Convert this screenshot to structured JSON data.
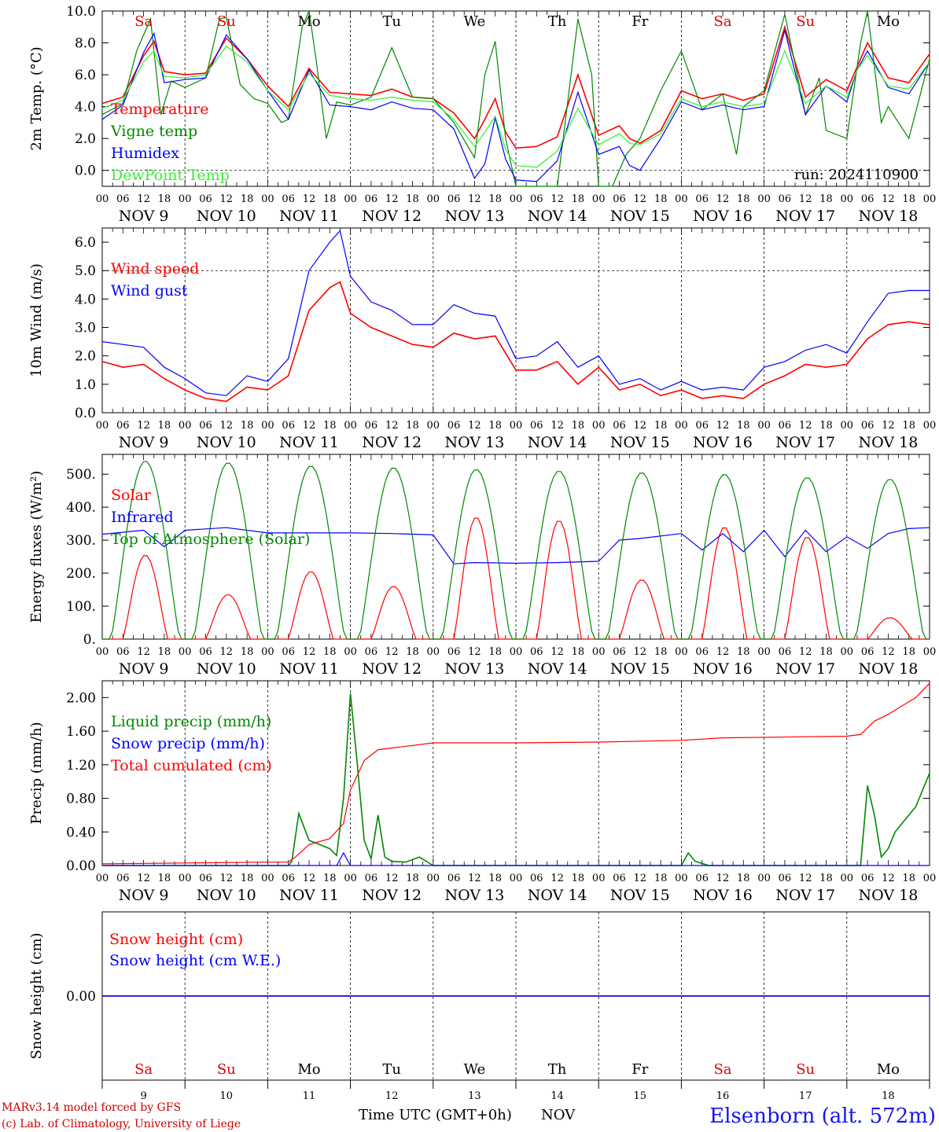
{
  "header": {
    "run_label": "run: 2024110900",
    "hour_ticks": [
      "00",
      "06",
      "12",
      "18"
    ],
    "day_ticks": [
      {
        "label": "NOV  9",
        "is_month": true
      },
      {
        "label": "NOV 10"
      },
      {
        "label": "NOV 11"
      },
      {
        "label": "NOV 12"
      },
      {
        "label": "NOV 13"
      },
      {
        "label": "NOV 14"
      },
      {
        "label": "NOV 15"
      },
      {
        "label": "NOV 16"
      },
      {
        "label": "NOV 17"
      },
      {
        "label": "NOV 18"
      }
    ],
    "weekdays": [
      {
        "label": "Sa",
        "color": "#dd0000"
      },
      {
        "label": "Su",
        "color": "#dd0000"
      },
      {
        "label": "Mo",
        "color": "#000000"
      },
      {
        "label": "Tu",
        "color": "#000000"
      },
      {
        "label": "We",
        "color": "#000000"
      },
      {
        "label": "Th",
        "color": "#000000"
      },
      {
        "label": "Fr",
        "color": "#000000"
      },
      {
        "label": "Sa",
        "color": "#dd0000"
      },
      {
        "label": "Su",
        "color": "#dd0000"
      },
      {
        "label": "Mo",
        "color": "#000000"
      }
    ],
    "day_numbers": [
      "9",
      "10",
      "11",
      "12",
      "13",
      "14",
      "15",
      "16",
      "17",
      "18"
    ]
  },
  "footer": {
    "model_label": "MARv3.14 model forced by GFS",
    "copyright": "(c) Lab. of Climatology, University of Liege",
    "xlabel": "Time UTC (GMT+0h)",
    "month": "NOV",
    "station": "Elsenborn (alt. 572m)"
  },
  "colors": {
    "red": "#ff0000",
    "green": "#008800",
    "blue": "#0000ff",
    "lightgreen": "#33ee33",
    "purple": "#880099",
    "station": "#1515ee",
    "footer": "#cc0000"
  },
  "chart_data": [
    {
      "type": "line",
      "ylabel": "2m Temp. (°C)",
      "ylim": [
        -1.0,
        10.0
      ],
      "yticks": [
        "0.0",
        "2.0",
        "4.0",
        "6.0",
        "8.0",
        "10.0"
      ],
      "x_unit": "hours since 2024-11-09 00 UTC",
      "x_range": [
        0,
        240
      ],
      "series": [
        {
          "name": "Temperature",
          "color": "#ff0000",
          "x": [
            0,
            6,
            12,
            15,
            18,
            24,
            30,
            36,
            42,
            48,
            54,
            60,
            66,
            72,
            78,
            84,
            90,
            96,
            102,
            108,
            111,
            114,
            117,
            120,
            126,
            132,
            138,
            144,
            150,
            153,
            156,
            162,
            168,
            174,
            180,
            186,
            192,
            198,
            204,
            210,
            216,
            219,
            222,
            228,
            234,
            240
          ],
          "values": [
            4.2,
            4.6,
            7.2,
            8.1,
            6.2,
            6.0,
            6.1,
            8.3,
            7.0,
            5.3,
            4.0,
            6.4,
            4.9,
            4.8,
            4.7,
            5.1,
            4.6,
            4.5,
            3.6,
            2.0,
            3.2,
            4.5,
            2.4,
            1.4,
            1.5,
            2.1,
            6.0,
            2.2,
            2.8,
            2.0,
            1.7,
            2.5,
            5.0,
            4.5,
            4.8,
            4.4,
            4.8,
            9.0,
            4.6,
            5.7,
            5.0,
            6.5,
            8.0,
            5.8,
            5.5,
            7.3
          ]
        },
        {
          "name": "Vigne temp",
          "color": "#008800",
          "x": [
            0,
            6,
            10,
            14,
            17,
            20,
            24,
            30,
            34,
            36,
            40,
            44,
            48,
            52,
            54,
            58,
            60,
            62,
            65,
            68,
            72,
            78,
            84,
            90,
            96,
            102,
            108,
            111,
            114,
            117,
            120,
            126,
            132,
            138,
            142,
            144,
            148,
            152,
            156,
            162,
            168,
            174,
            180,
            184,
            186,
            192,
            198,
            204,
            208,
            210,
            216,
            220,
            222,
            226,
            228,
            234,
            240
          ],
          "values": [
            3.5,
            4.2,
            7.5,
            9.5,
            3.5,
            5.6,
            5.2,
            5.8,
            9.5,
            9.6,
            5.4,
            4.5,
            4.2,
            3.0,
            3.2,
            9.0,
            10.0,
            7.0,
            2.0,
            4.3,
            4.1,
            4.6,
            7.7,
            4.6,
            4.5,
            3.0,
            0.8,
            6.0,
            8.1,
            2.0,
            -1.0,
            -1.0,
            -1.0,
            9.5,
            6.0,
            -1.0,
            -1.0,
            1.0,
            2.0,
            5.0,
            7.5,
            3.8,
            4.8,
            1.0,
            4.0,
            5.0,
            9.8,
            3.5,
            5.8,
            2.5,
            2.0,
            8.0,
            10.0,
            3.0,
            4.0,
            2.0,
            7.0
          ]
        },
        {
          "name": "Humidex",
          "color": "#0000ff",
          "x": [
            0,
            6,
            12,
            15,
            18,
            24,
            30,
            36,
            42,
            48,
            54,
            60,
            66,
            72,
            78,
            84,
            90,
            96,
            102,
            108,
            111,
            114,
            117,
            120,
            126,
            132,
            138,
            144,
            150,
            153,
            156,
            162,
            168,
            174,
            180,
            186,
            192,
            198,
            204,
            210,
            216,
            219,
            222,
            228,
            234,
            240
          ],
          "values": [
            3.2,
            4.1,
            7.4,
            8.6,
            5.5,
            5.7,
            5.8,
            8.5,
            7.0,
            5.0,
            3.2,
            6.3,
            4.1,
            4.0,
            3.8,
            4.3,
            3.9,
            3.8,
            2.6,
            -0.5,
            0.4,
            3.3,
            0.7,
            -0.6,
            -0.7,
            0.6,
            4.9,
            1.0,
            1.5,
            0.3,
            0.0,
            2.0,
            4.3,
            3.8,
            4.1,
            3.8,
            4.0,
            8.8,
            3.5,
            5.3,
            4.3,
            6.3,
            7.5,
            5.2,
            4.8,
            6.8
          ]
        },
        {
          "name": "DewPoint Temp",
          "color": "#33ee33",
          "x": [
            0,
            6,
            12,
            15,
            18,
            24,
            30,
            36,
            42,
            48,
            54,
            60,
            66,
            72,
            78,
            84,
            90,
            96,
            102,
            108,
            111,
            114,
            117,
            120,
            126,
            132,
            138,
            144,
            150,
            153,
            156,
            162,
            168,
            174,
            180,
            186,
            192,
            198,
            204,
            210,
            216,
            219,
            222,
            228,
            234,
            240
          ],
          "values": [
            3.9,
            4.4,
            6.8,
            7.5,
            5.9,
            5.8,
            6.0,
            7.8,
            6.8,
            5.0,
            3.8,
            6.1,
            4.7,
            4.5,
            4.4,
            4.6,
            4.4,
            4.3,
            3.2,
            1.5,
            2.4,
            3.4,
            1.3,
            0.3,
            0.2,
            1.2,
            3.9,
            1.6,
            2.3,
            1.7,
            1.6,
            2.3,
            4.5,
            4.0,
            4.3,
            4.0,
            4.2,
            7.5,
            4.2,
            5.3,
            4.6,
            6.3,
            7.2,
            5.3,
            5.1,
            6.8
          ]
        }
      ]
    },
    {
      "type": "line",
      "ylabel": "10m Wind (m/s)",
      "ylim": [
        0.0,
        6.5
      ],
      "yticks": [
        "0.0",
        "1.0",
        "2.0",
        "3.0",
        "4.0",
        "5.0",
        "6.0"
      ],
      "x_unit": "hours since 2024-11-09 00 UTC",
      "x_range": [
        0,
        240
      ],
      "series": [
        {
          "name": "Wind speed",
          "color": "#ff0000",
          "x": [
            0,
            6,
            12,
            18,
            24,
            30,
            36,
            42,
            48,
            54,
            60,
            66,
            69,
            72,
            78,
            84,
            90,
            96,
            102,
            108,
            114,
            120,
            126,
            132,
            138,
            144,
            150,
            156,
            162,
            168,
            174,
            180,
            186,
            192,
            198,
            204,
            210,
            216,
            222,
            228,
            234,
            240
          ],
          "values": [
            1.8,
            1.6,
            1.7,
            1.2,
            0.8,
            0.5,
            0.4,
            0.9,
            0.8,
            1.3,
            3.6,
            4.4,
            4.6,
            3.5,
            3.0,
            2.7,
            2.4,
            2.3,
            2.8,
            2.6,
            2.7,
            1.5,
            1.5,
            1.8,
            1.0,
            1.6,
            0.8,
            1.0,
            0.6,
            0.8,
            0.5,
            0.6,
            0.5,
            1.0,
            1.3,
            1.7,
            1.6,
            1.7,
            2.6,
            3.1,
            3.2,
            3.1
          ]
        },
        {
          "name": "Wind gust",
          "color": "#0000ff",
          "x": [
            0,
            6,
            12,
            18,
            24,
            30,
            36,
            42,
            48,
            54,
            60,
            66,
            69,
            72,
            78,
            84,
            90,
            96,
            102,
            108,
            114,
            120,
            126,
            132,
            138,
            144,
            150,
            156,
            162,
            168,
            174,
            180,
            186,
            192,
            198,
            204,
            210,
            216,
            222,
            228,
            234,
            240
          ],
          "values": [
            2.5,
            2.4,
            2.3,
            1.6,
            1.2,
            0.7,
            0.6,
            1.3,
            1.1,
            1.9,
            5.0,
            6.0,
            6.4,
            4.8,
            3.9,
            3.6,
            3.1,
            3.1,
            3.8,
            3.5,
            3.4,
            1.9,
            2.0,
            2.5,
            1.6,
            2.0,
            1.0,
            1.2,
            0.8,
            1.1,
            0.8,
            0.9,
            0.8,
            1.6,
            1.8,
            2.2,
            2.4,
            2.1,
            3.2,
            4.2,
            4.3,
            4.3
          ]
        }
      ]
    },
    {
      "type": "line",
      "ylabel": "Energy fluxes (W/m²)",
      "ylim": [
        0,
        560
      ],
      "yticks": [
        "0.",
        "100.",
        "200.",
        "300.",
        "400.",
        "500."
      ],
      "x_unit": "hours since 2024-11-09 00 UTC",
      "x_range": [
        0,
        240
      ],
      "series": [
        {
          "name": "Solar",
          "color": "#ff0000",
          "peaks": [
            255,
            135,
            205,
            160,
            370,
            360,
            180,
            340,
            310,
            65
          ]
        },
        {
          "name": "Infrared",
          "color": "#0000ff",
          "x": [
            0,
            12,
            18,
            24,
            36,
            48,
            60,
            72,
            84,
            96,
            102,
            108,
            120,
            132,
            144,
            150,
            156,
            168,
            174,
            180,
            186,
            192,
            198,
            204,
            210,
            216,
            222,
            228,
            234,
            240
          ],
          "values": [
            318,
            330,
            280,
            330,
            338,
            322,
            322,
            322,
            320,
            316,
            228,
            232,
            230,
            232,
            236,
            300,
            305,
            320,
            270,
            320,
            265,
            330,
            250,
            330,
            265,
            310,
            275,
            320,
            335,
            338
          ]
        },
        {
          "name": "Top of Atmosphere (Solar)",
          "color": "#008800",
          "peaks": [
            540,
            535,
            525,
            520,
            515,
            510,
            505,
            500,
            490,
            485
          ]
        }
      ]
    },
    {
      "type": "line",
      "ylabel": "Precip (mm/h)",
      "ylim": [
        0.0,
        2.2
      ],
      "yticks": [
        "0.00",
        "0.40",
        "0.80",
        "1.20",
        "1.60",
        "2.00"
      ],
      "x_unit": "hours since 2024-11-09 00 UTC",
      "x_range": [
        0,
        240
      ],
      "series": [
        {
          "name": "Liquid precip (mm/h)",
          "color": "#008800",
          "x": [
            0,
            54,
            55,
            57,
            60,
            63,
            66,
            68,
            70,
            72,
            74,
            76,
            78,
            80,
            82,
            84,
            88,
            92,
            96,
            100,
            108,
            168,
            170,
            172,
            176,
            180,
            220,
            222,
            224,
            226,
            228,
            230,
            232,
            234,
            236,
            238,
            240
          ],
          "values": [
            0,
            0,
            0.05,
            0.62,
            0.3,
            0.25,
            0.2,
            0.12,
            0.8,
            2.05,
            1.2,
            0.3,
            0.08,
            0.6,
            0.1,
            0.05,
            0.04,
            0.1,
            0,
            0,
            0,
            0,
            0.15,
            0.05,
            0,
            0,
            0,
            0.95,
            0.6,
            0.1,
            0.2,
            0.4,
            0.5,
            0.6,
            0.7,
            0.9,
            1.1
          ]
        },
        {
          "name": "Snow precip (mm/h)",
          "color": "#0000ff",
          "x": [
            0,
            68,
            70,
            72,
            240
          ],
          "values": [
            0,
            0,
            0.15,
            0,
            0
          ]
        },
        {
          "name": "Total cumulated (cm)",
          "color": "#ff0000",
          "x": [
            0,
            24,
            48,
            54,
            56,
            60,
            66,
            70,
            72,
            76,
            80,
            84,
            90,
            96,
            108,
            120,
            144,
            168,
            180,
            216,
            220,
            224,
            228,
            232,
            236,
            240
          ],
          "values": [
            0.02,
            0.03,
            0.04,
            0.04,
            0.1,
            0.25,
            0.32,
            0.5,
            0.9,
            1.25,
            1.38,
            1.4,
            1.43,
            1.46,
            1.46,
            1.46,
            1.47,
            1.49,
            1.52,
            1.54,
            1.56,
            1.72,
            1.8,
            1.9,
            2.0,
            2.17
          ]
        }
      ]
    },
    {
      "type": "line",
      "ylabel": "Snow height (cm)",
      "ylim": [
        -1,
        1
      ],
      "yticks": [
        "0.00"
      ],
      "x_unit": "hours since 2024-11-09 00 UTC",
      "x_range": [
        0,
        240
      ],
      "series": [
        {
          "name": "Snow height (cm)",
          "color": "#ff0000",
          "x": [
            0,
            240
          ],
          "values": [
            0,
            0
          ]
        },
        {
          "name": "Snow height (cm W.E.)",
          "color": "#0000ff",
          "x": [
            0,
            240
          ],
          "values": [
            0,
            0
          ]
        }
      ]
    }
  ]
}
